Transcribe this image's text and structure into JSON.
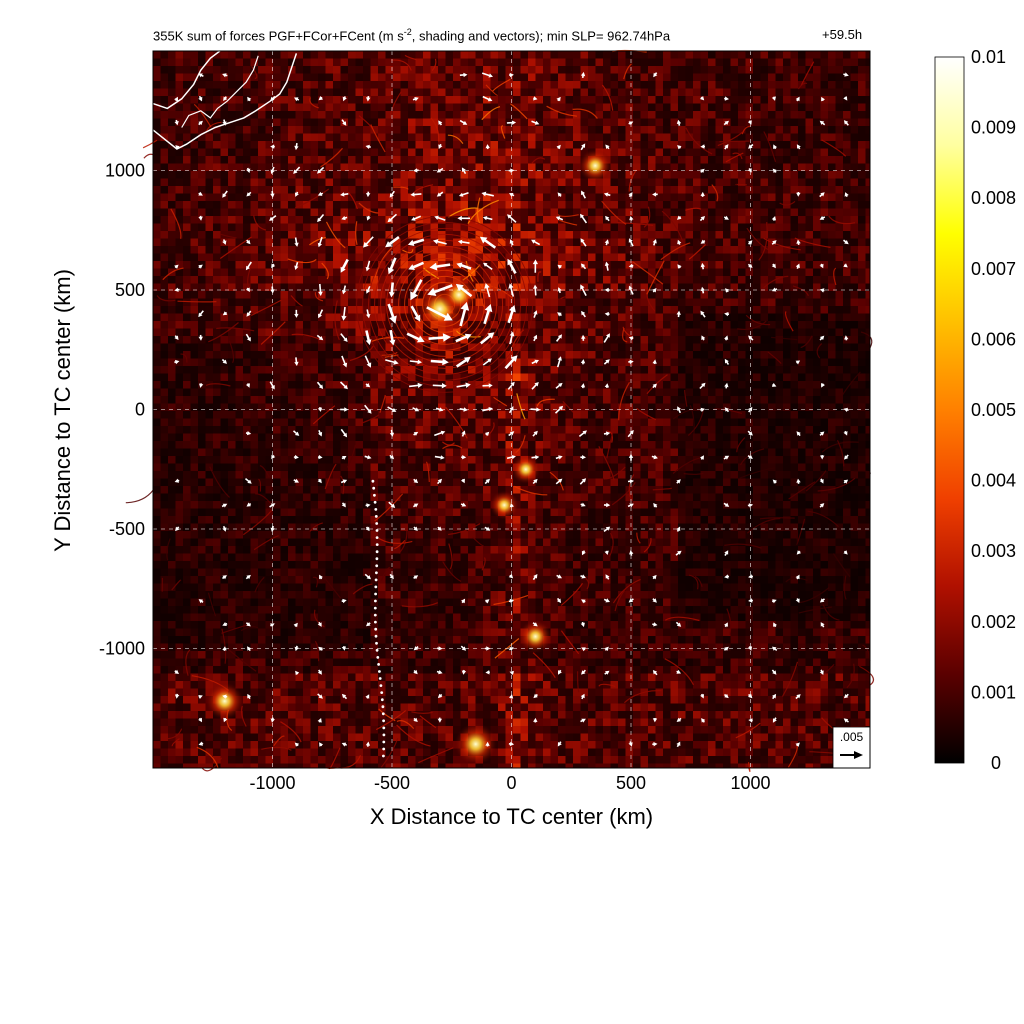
{
  "title": {
    "main_prefix": "355K sum of forces PGF+FCor+FCent (m s",
    "main_exp": "-2",
    "main_suffix": ", shading and vectors); min SLP= 962.74hPa",
    "time": "+59.5h"
  },
  "chart_data": {
    "type": "heatmap",
    "xlabel": "X Distance to TC center (km)",
    "ylabel": "Y Distance to TC center (km)",
    "xlim": [
      -1500,
      1500
    ],
    "ylim": [
      -1500,
      1500
    ],
    "xticks": [
      -1000,
      -500,
      0,
      500,
      1000
    ],
    "yticks": [
      -1000,
      -500,
      0,
      500,
      1000
    ],
    "xtick_labels": [
      "-1000",
      "-500",
      "0",
      "500",
      "1000"
    ],
    "ytick_labels": [
      "-1000",
      "-500",
      "0",
      "500",
      "1000"
    ],
    "grid": true,
    "colorbar": {
      "min": 0,
      "max": 0.01,
      "ticks": [
        0,
        0.001,
        0.002,
        0.003,
        0.004,
        0.005,
        0.006,
        0.007,
        0.008,
        0.009,
        0.01
      ],
      "tick_labels": [
        "0",
        "0.001",
        "0.002",
        "0.003",
        "0.004",
        "0.005",
        "0.006",
        "0.007",
        "0.008",
        "0.009",
        "0.01"
      ],
      "colors": [
        "#000000",
        "#5a0000",
        "#b01000",
        "#f04000",
        "#ff8000",
        "#ffc000",
        "#ffff00",
        "#ffffa0",
        "#ffffff"
      ]
    },
    "reference_vector": {
      "label": ".005",
      "magnitude": 0.005
    },
    "vector_grid": {
      "x_start": -1500,
      "y_start": -1500,
      "spacing": 100,
      "speed_threshold": 0.0009,
      "note_field": "vortex_near_storm_plus_local_noise"
    },
    "intense_features": [
      {
        "x": -300,
        "y": 420,
        "strength": 0.007
      },
      {
        "x": -220,
        "y": 480,
        "strength": 0.005
      },
      {
        "x": 350,
        "y": 1020,
        "strength": 0.004
      },
      {
        "x": -1200,
        "y": -1220,
        "strength": 0.005
      },
      {
        "x": -150,
        "y": -1400,
        "strength": 0.006
      },
      {
        "x": 100,
        "y": -950,
        "strength": 0.004
      },
      {
        "x": -30,
        "y": -400,
        "strength": 0.003
      },
      {
        "x": 60,
        "y": -250,
        "strength": 0.003
      }
    ],
    "coastline_region": "upper-left"
  }
}
